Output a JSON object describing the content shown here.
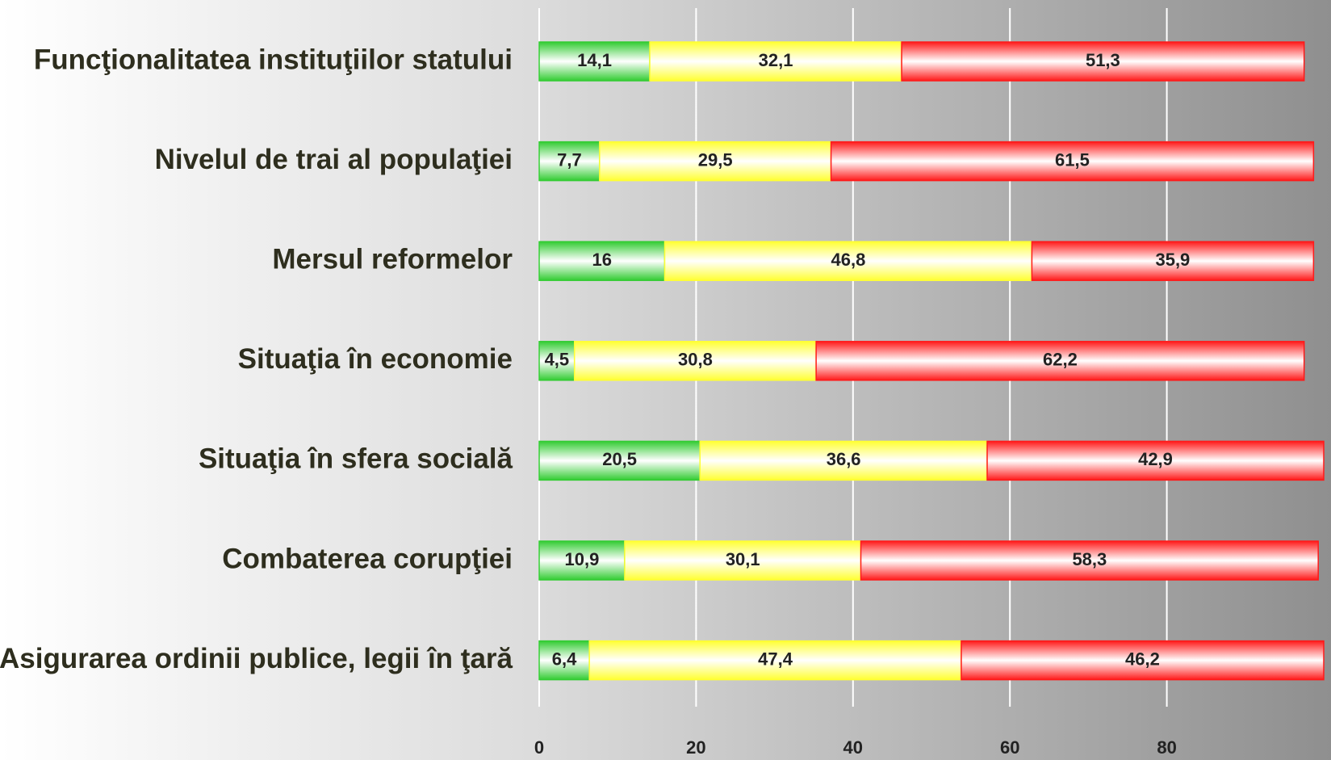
{
  "chart_data": {
    "type": "stacked-bar-horizontal",
    "categories": [
      "Funcţionalitatea instituţiilor statului",
      "Nivelul de trai al populaţiei",
      "Mersul reformelor",
      "Situaţia în economie",
      "Situaţia în sfera socială",
      "Combaterea corupţiei",
      "Asigurarea ordinii publice, legii în ţară"
    ],
    "series": [
      {
        "color": "#33cc33",
        "values": [
          14.1,
          7.7,
          16,
          4.5,
          20.5,
          10.9,
          6.4
        ],
        "value_labels": [
          "14,1",
          "7,7",
          "16",
          "4,5",
          "20,5",
          "10,9",
          "6,4"
        ]
      },
      {
        "color": "#ffff33",
        "values": [
          32.1,
          29.5,
          46.8,
          30.8,
          36.6,
          30.1,
          47.4
        ],
        "value_labels": [
          "32,1",
          "29,5",
          "46,8",
          "30,8",
          "36,6",
          "30,1",
          "47,4"
        ]
      },
      {
        "color": "#ff1a1a",
        "values": [
          51.3,
          61.5,
          35.9,
          62.2,
          42.9,
          58.3,
          46.2
        ],
        "value_labels": [
          "51,3",
          "61,5",
          "35,9",
          "62,2",
          "42,9",
          "58,3",
          "46,2"
        ]
      }
    ],
    "xlim": [
      0,
      100
    ],
    "xticks": [
      0,
      20,
      40,
      60,
      80
    ],
    "grid": true
  }
}
